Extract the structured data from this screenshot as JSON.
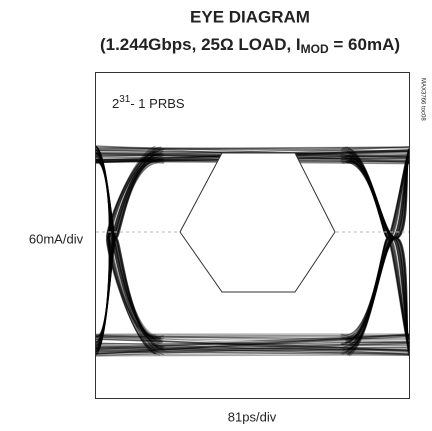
{
  "chart_data": {
    "type": "eye-diagram",
    "title": "EYE DIAGRAM",
    "subtitle": {
      "before": "(1.244Gbps, 25Ω LOAD, I",
      "subscript": "MOD",
      "after": " = 60mA)"
    },
    "annotation": {
      "base": "2",
      "superscript": "31",
      "after": "- 1 PRBS"
    },
    "figure_id": "MAX3766 toc08",
    "y_label": "60mA/div",
    "x_label": "81ps/div"
  }
}
